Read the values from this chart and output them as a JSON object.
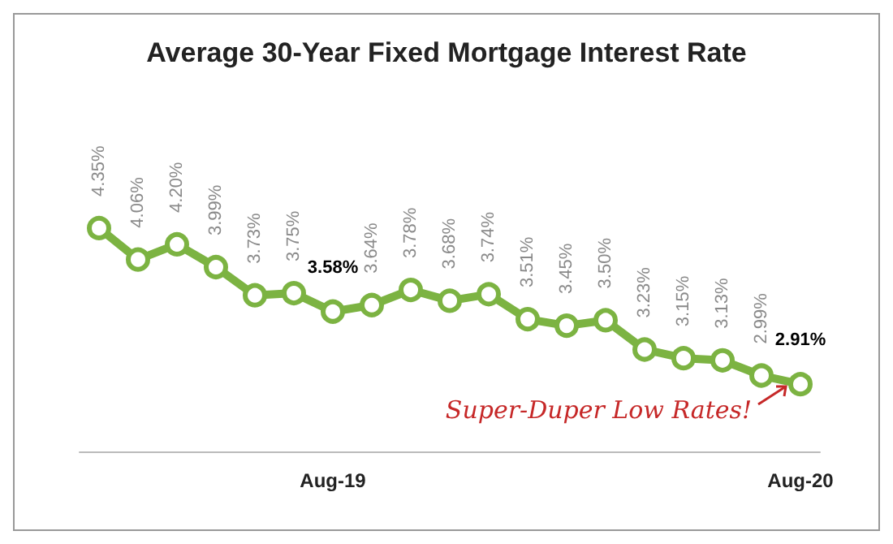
{
  "chart_data": {
    "type": "line",
    "title": "Average 30-Year Fixed Mortgage Interest Rate",
    "categories": [
      null,
      null,
      null,
      null,
      null,
      null,
      "Aug-19",
      null,
      null,
      null,
      null,
      null,
      null,
      null,
      null,
      null,
      null,
      null,
      "Aug-20"
    ],
    "values": [
      4.35,
      4.06,
      4.2,
      3.99,
      3.73,
      3.75,
      3.58,
      3.64,
      3.78,
      3.68,
      3.74,
      3.51,
      3.45,
      3.5,
      3.23,
      3.15,
      3.13,
      2.99,
      2.91
    ],
    "value_labels": [
      "4.35%",
      "4.06%",
      "4.20%",
      "3.99%",
      "3.73%",
      "3.75%",
      "3.58%",
      "3.64%",
      "3.78%",
      "3.68%",
      "3.74%",
      "3.51%",
      "3.45%",
      "3.50%",
      "3.23%",
      "3.15%",
      "3.13%",
      "2.99%",
      "2.91%"
    ],
    "color": "#7cb342",
    "marker": "circle",
    "line_style": "solid",
    "grid": false,
    "annotations": [
      {
        "text": "Super-Duper Low Rates!",
        "x": "Aug-20",
        "y": 2.91
      }
    ]
  }
}
